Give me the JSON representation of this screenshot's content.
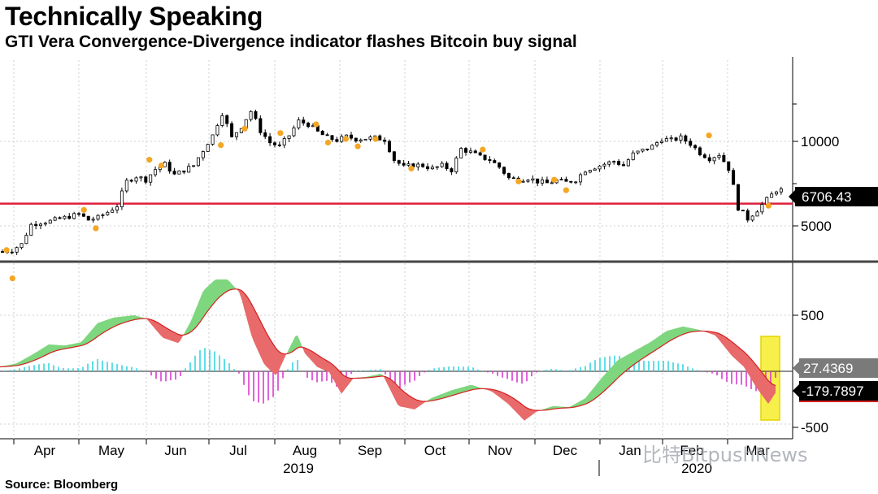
{
  "header": {
    "title": "Technically Speaking",
    "subtitle": "GTI Vera Convergence-Divergence indicator flashes Bitcoin buy signal"
  },
  "footer": {
    "source": "Source: Bloomberg",
    "watermark": "比特BitpushNews"
  },
  "colors": {
    "candle": "#000000",
    "signal_dot": "#f5a623",
    "support_line": "#e0203c",
    "osc_up_fill": "#7ed67e",
    "osc_down_fill": "#e86a6a",
    "hist_pos": "#38d6e0",
    "hist_neg": "#d93cd0",
    "highlight": "#f7f04a",
    "label_bg_dark": "#000000",
    "label_bg_gray": "#7a7a7a"
  },
  "chart_data": [
    {
      "type": "candlestick",
      "name": "price",
      "ylim": [
        2800,
        14500
      ],
      "y_ticks": [
        5000,
        10000
      ],
      "x_labels": [
        "Apr",
        "May",
        "Jun",
        "Jul",
        "Aug",
        "Sep",
        "Oct",
        "Nov",
        "Dec",
        "Jan",
        "Feb",
        "Mar"
      ],
      "year_labels": [
        "2019",
        "2020"
      ],
      "support_level": 6000,
      "last_value_label": "6706.43",
      "series_weekly_close": [
        4050,
        4100,
        4300,
        5050,
        5150,
        5200,
        5300,
        5400,
        5500,
        5250,
        5350,
        5600,
        5900,
        7200,
        7500,
        7300,
        7950,
        8300,
        7600,
        7900,
        8200,
        9300,
        10500,
        12600,
        10300,
        11300,
        12800,
        10900,
        9900,
        9600,
        10500,
        11800,
        11500,
        10800,
        10300,
        10100,
        10400,
        10200,
        10250,
        10300,
        10150,
        8600,
        8100,
        8250,
        8200,
        8000,
        8200,
        7900,
        9400,
        9150,
        8800,
        8600,
        8100,
        7400,
        7300,
        7400,
        7200,
        7100,
        7250,
        7150,
        7300,
        7900,
        8100,
        8300,
        8500,
        8200,
        9000,
        9300,
        9600,
        10200,
        10100,
        10300,
        9800,
        9100,
        8700,
        9000,
        8000,
        5800,
        5300,
        5700,
        6200,
        6706
      ],
      "signal_dots": [
        [
          0,
          4100
        ],
        [
          1,
          3250
        ],
        [
          13,
          5700
        ],
        [
          15,
          4900
        ],
        [
          24,
          8600
        ],
        [
          26,
          8200
        ],
        [
          36,
          9700
        ],
        [
          40,
          11100
        ],
        [
          46,
          10700
        ],
        [
          52,
          11500
        ],
        [
          54,
          9900
        ],
        [
          57,
          10200
        ],
        [
          59,
          9600
        ],
        [
          62,
          10200
        ],
        [
          68,
          8000
        ],
        [
          80,
          9350
        ],
        [
          86,
          7200
        ],
        [
          92,
          7300
        ],
        [
          94,
          6700
        ],
        [
          118,
          10500
        ],
        [
          128,
          5900
        ]
      ]
    },
    {
      "type": "oscillator",
      "name": "GTI Vera Convergence-Divergence",
      "ylim": [
        -600,
        950
      ],
      "y_ticks": [
        500,
        -500
      ],
      "labels": [
        "27.4369",
        "-179.7897"
      ]
    }
  ]
}
